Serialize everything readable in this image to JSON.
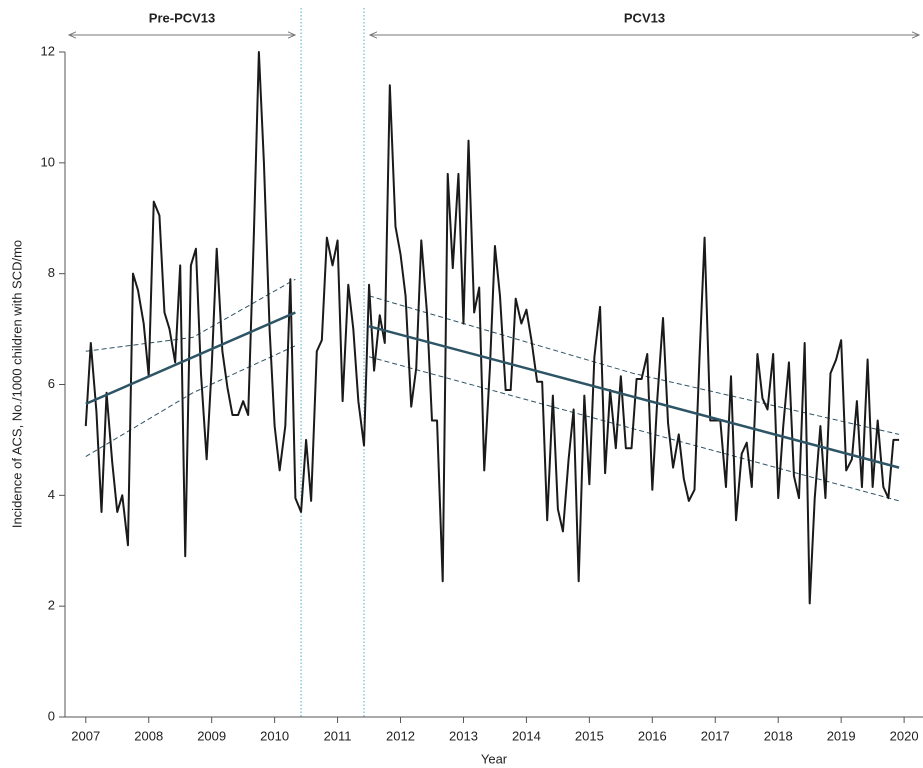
{
  "chart_data": {
    "type": "line",
    "x_label": "Year",
    "y_label": "Incidence of ACS, No./1000 children with SCD/mo",
    "xlim": [
      2006.67,
      2020.3
    ],
    "ylim": [
      0,
      12
    ],
    "xticks": [
      2007,
      2008,
      2009,
      2010,
      2011,
      2012,
      2013,
      2014,
      2015,
      2016,
      2017,
      2018,
      2019,
      2020
    ],
    "yticks": [
      0,
      2,
      4,
      6,
      8,
      10,
      12
    ],
    "periods": [
      {
        "label": "Pre-PCV13"
      },
      {
        "label": "PCV13"
      }
    ],
    "phase_lines": {
      "x": [
        2010.42,
        2011.42
      ],
      "color": "#4aaed1"
    },
    "series": [
      {
        "color": "#1a1a1a",
        "x": [
          2007,
          2007.08,
          2007.17,
          2007.25,
          2007.33,
          2007.42,
          2007.5,
          2007.58,
          2007.67,
          2007.75,
          2007.83,
          2007.92,
          2008,
          2008.08,
          2008.17,
          2008.25,
          2008.33,
          2008.42,
          2008.5,
          2008.58,
          2008.67,
          2008.75,
          2008.83,
          2008.92,
          2009,
          2009.08,
          2009.17,
          2009.25,
          2009.33,
          2009.42,
          2009.5,
          2009.58,
          2009.67,
          2009.75,
          2009.83,
          2009.92,
          2010,
          2010.08,
          2010.17,
          2010.25,
          2010.33,
          2010.42,
          2010.5,
          2010.58,
          2010.67,
          2010.75,
          2010.83,
          2010.92,
          2011,
          2011.08,
          2011.17,
          2011.25,
          2011.33,
          2011.42,
          2011.5,
          2011.58,
          2011.67,
          2011.75,
          2011.83,
          2011.92,
          2012,
          2012.08,
          2012.17,
          2012.25,
          2012.33,
          2012.42,
          2012.5,
          2012.58,
          2012.67,
          2012.75,
          2012.83,
          2012.92,
          2013,
          2013.08,
          2013.17,
          2013.25,
          2013.33,
          2013.42,
          2013.5,
          2013.58,
          2013.67,
          2013.75,
          2013.83,
          2013.92,
          2014,
          2014.08,
          2014.17,
          2014.25,
          2014.33,
          2014.42,
          2014.5,
          2014.58,
          2014.67,
          2014.75,
          2014.83,
          2014.92,
          2015,
          2015.08,
          2015.17,
          2015.25,
          2015.33,
          2015.42,
          2015.5,
          2015.58,
          2015.67,
          2015.75,
          2015.83,
          2015.92,
          2016,
          2016.08,
          2016.17,
          2016.25,
          2016.33,
          2016.42,
          2016.5,
          2016.58,
          2016.67,
          2016.75,
          2016.83,
          2016.92,
          2017,
          2017.08,
          2017.17,
          2017.25,
          2017.33,
          2017.42,
          2017.5,
          2017.58,
          2017.67,
          2017.75,
          2017.83,
          2017.92,
          2018,
          2018.08,
          2018.17,
          2018.25,
          2018.33,
          2018.42,
          2018.5,
          2018.58,
          2018.67,
          2018.75,
          2018.83,
          2018.92,
          2019,
          2019.08,
          2019.17,
          2019.25,
          2019.33,
          2019.42,
          2019.5,
          2019.58,
          2019.67,
          2019.75,
          2019.83,
          2019.92
        ],
        "values": [
          5.25,
          6.75,
          5.5,
          3.7,
          5.85,
          4.6,
          3.7,
          4.0,
          3.1,
          8.0,
          7.7,
          7.1,
          6.15,
          9.3,
          9.05,
          7.3,
          7.0,
          6.4,
          8.15,
          2.9,
          8.15,
          8.45,
          6.2,
          4.65,
          6.3,
          8.45,
          6.6,
          5.95,
          5.45,
          5.45,
          5.7,
          5.45,
          8.7,
          12.0,
          10.0,
          7.0,
          5.25,
          4.45,
          5.25,
          7.9,
          3.95,
          3.7,
          5.0,
          3.9,
          6.6,
          6.8,
          8.65,
          8.15,
          8.6,
          5.7,
          7.8,
          7.0,
          5.7,
          4.9,
          7.8,
          6.25,
          7.25,
          6.75,
          11.4,
          8.85,
          8.35,
          7.6,
          5.6,
          6.3,
          8.6,
          7.3,
          5.35,
          5.35,
          2.45,
          9.8,
          8.1,
          9.8,
          7.1,
          10.4,
          7.3,
          7.75,
          4.45,
          6.3,
          8.5,
          7.6,
          5.9,
          5.9,
          7.55,
          7.1,
          7.35,
          6.8,
          6.05,
          6.05,
          3.55,
          5.8,
          3.75,
          3.35,
          4.65,
          5.55,
          2.45,
          5.8,
          4.2,
          6.5,
          7.4,
          4.4,
          5.9,
          4.85,
          6.15,
          4.85,
          4.85,
          6.1,
          6.1,
          6.55,
          4.1,
          5.75,
          7.2,
          5.3,
          4.5,
          5.1,
          4.3,
          3.9,
          4.1,
          6.5,
          8.65,
          5.35,
          5.35,
          5.35,
          4.15,
          6.15,
          3.55,
          4.75,
          4.95,
          4.15,
          6.55,
          5.75,
          5.55,
          6.55,
          3.95,
          5.25,
          6.4,
          4.35,
          3.95,
          6.75,
          2.05,
          3.95,
          5.25,
          3.95,
          6.2,
          6.45,
          6.8,
          4.45,
          4.65,
          5.7,
          4.15,
          6.45,
          4.15,
          5.35,
          4.15,
          3.95,
          5.0,
          5.0
        ]
      }
    ],
    "trend_lines": [
      {
        "color": "#2e5566",
        "x": [
          2007,
          2010.33
        ],
        "values": [
          5.65,
          7.3
        ]
      },
      {
        "color": "#2e5566",
        "x": [
          2011.5,
          2019.92
        ],
        "values": [
          7.05,
          4.5
        ]
      }
    ],
    "ci_lines": [
      {
        "color": "#2e5566",
        "x": [
          2007,
          2008.7,
          2010.33
        ],
        "values": [
          6.6,
          6.85,
          7.9
        ]
      },
      {
        "color": "#2e5566",
        "x": [
          2007,
          2008.7,
          2010.33
        ],
        "values": [
          4.7,
          5.85,
          6.7
        ]
      },
      {
        "color": "#2e5566",
        "x": [
          2011.5,
          2015.7,
          2019.92
        ],
        "values": [
          7.6,
          6.2,
          5.1
        ]
      },
      {
        "color": "#2e5566",
        "x": [
          2011.5,
          2015.7,
          2019.92
        ],
        "values": [
          6.5,
          5.2,
          3.9
        ]
      }
    ]
  }
}
